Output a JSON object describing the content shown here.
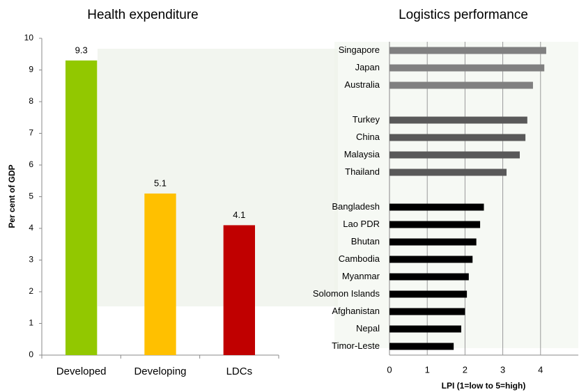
{
  "chart_data": [
    {
      "type": "bar",
      "title": "Health expenditure",
      "ylabel": "Per cent of GDP",
      "categories": [
        "Developed",
        "Developing",
        "LDCs"
      ],
      "values": [
        9.3,
        5.1,
        4.1
      ],
      "colors": [
        "#92c800",
        "#ffc000",
        "#c00000"
      ],
      "ylim": [
        0,
        10
      ],
      "yticks": [
        0,
        1,
        2,
        3,
        4,
        5,
        6,
        7,
        8,
        9,
        10
      ],
      "grid": false
    },
    {
      "type": "hbar",
      "title": "Logistics performance",
      "xlabel": "LPI (1=low to 5=high)",
      "categories": [
        "Singapore",
        "Japan",
        "Australia",
        null,
        "Turkey",
        "China",
        "Malaysia",
        "Thailand",
        null,
        "Bangladesh",
        "Lao PDR",
        "Bhutan",
        "Cambodia",
        "Myanmar",
        "Solomon Islands",
        "Afghanistan",
        "Nepal",
        "Timor-Leste"
      ],
      "values": [
        4.15,
        4.1,
        3.8,
        null,
        3.65,
        3.6,
        3.45,
        3.1,
        null,
        2.5,
        2.4,
        2.3,
        2.2,
        2.1,
        2.05,
        2.0,
        1.9,
        1.7
      ],
      "colors": [
        "#808080",
        "#808080",
        "#808080",
        null,
        "#595959",
        "#595959",
        "#595959",
        "#595959",
        null,
        "#000000",
        "#000000",
        "#000000",
        "#000000",
        "#000000",
        "#000000",
        "#000000",
        "#000000",
        "#000000"
      ],
      "xlim": [
        0,
        5
      ],
      "xticks": [
        0,
        1,
        2,
        3,
        4
      ],
      "grid": true
    }
  ]
}
